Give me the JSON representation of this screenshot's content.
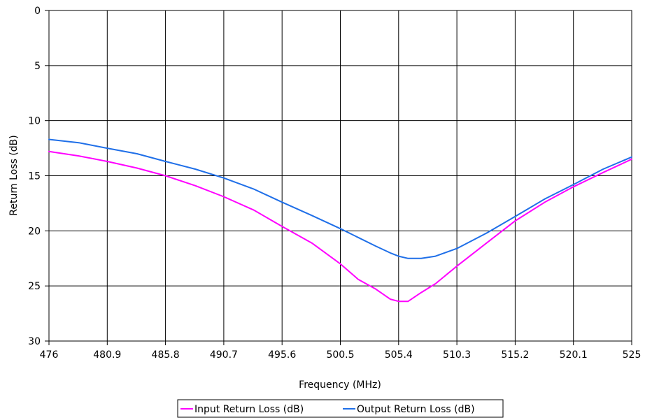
{
  "chart_data": {
    "type": "line",
    "title": "",
    "xlabel": "Frequency (MHz)",
    "ylabel": "Return Loss (dB)",
    "xlim": [
      476,
      525
    ],
    "ylim": [
      0,
      30
    ],
    "y_inverted": true,
    "grid": true,
    "legend_position": "bottom",
    "x_ticks": [
      "476",
      "480.9",
      "485.8",
      "490.7",
      "495.6",
      "500.5",
      "505.4",
      "510.3",
      "515.2",
      "520.1",
      "525"
    ],
    "y_ticks": [
      "0",
      "5",
      "10",
      "15",
      "20",
      "25",
      "30"
    ],
    "series": [
      {
        "name": "Input Return Loss (dB)",
        "color": "#ff00ff",
        "x": [
          476,
          478.5,
          480.9,
          483.4,
          485.8,
          488.3,
          490.7,
          493.2,
          495.6,
          498.1,
          500.5,
          502.0,
          503.5,
          504.7,
          505.4,
          506.2,
          507.3,
          508.5,
          510.3,
          512.8,
          515.2,
          517.7,
          520.1,
          522.6,
          525
        ],
        "y": [
          12.8,
          13.2,
          13.7,
          14.3,
          15.0,
          15.9,
          16.9,
          18.1,
          19.6,
          21.1,
          23.0,
          24.4,
          25.3,
          26.2,
          26.4,
          26.4,
          25.6,
          24.8,
          23.2,
          21.1,
          19.1,
          17.4,
          16.0,
          14.7,
          13.5
        ]
      },
      {
        "name": "Output Return Loss (dB)",
        "color": "#1f6fe8",
        "x": [
          476,
          478.5,
          480.9,
          483.4,
          485.8,
          488.3,
          490.7,
          493.2,
          495.6,
          498.1,
          500.5,
          502.0,
          503.5,
          504.7,
          505.4,
          506.2,
          507.3,
          508.5,
          510.3,
          512.8,
          515.2,
          517.7,
          520.1,
          522.6,
          525
        ],
        "y": [
          11.7,
          12.0,
          12.5,
          13.0,
          13.7,
          14.4,
          15.2,
          16.2,
          17.4,
          18.6,
          19.8,
          20.6,
          21.4,
          22.0,
          22.3,
          22.5,
          22.5,
          22.3,
          21.6,
          20.2,
          18.7,
          17.1,
          15.8,
          14.4,
          13.3
        ]
      }
    ]
  }
}
